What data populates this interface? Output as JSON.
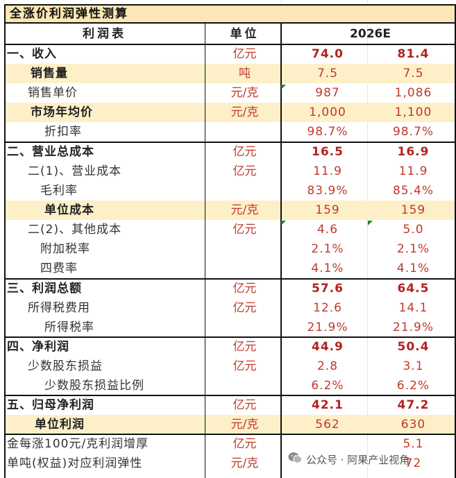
{
  "title": "全涨价利润弹性测算",
  "header": {
    "item": "利润表",
    "unit": "单位",
    "year": "2026E"
  },
  "rows": [
    {
      "label": "一、收入",
      "unit": "亿元",
      "v1": "74.0",
      "v2": "81.4"
    },
    {
      "label": "销售量",
      "unit": "吨",
      "v1": "7.5",
      "v2": "7.5"
    },
    {
      "label": "销售单价",
      "unit": "元/克",
      "v1": "987",
      "v2": "1,086"
    },
    {
      "label": "市场年均价",
      "unit": "元/克",
      "v1": "1,000",
      "v2": "1,100"
    },
    {
      "label": "折扣率",
      "unit": "",
      "v1": "98.7%",
      "v2": "98.7%"
    },
    {
      "label": "二、营业总成本",
      "unit": "亿元",
      "v1": "16.5",
      "v2": "16.9"
    },
    {
      "label": "二(1)、营业成本",
      "unit": "亿元",
      "v1": "11.9",
      "v2": "11.9"
    },
    {
      "label": "毛利率",
      "unit": "",
      "v1": "83.9%",
      "v2": "85.4%"
    },
    {
      "label": "单位成本",
      "unit": "元/克",
      "v1": "159",
      "v2": "159"
    },
    {
      "label": "二(2)、其他成本",
      "unit": "亿元",
      "v1": "4.6",
      "v2": "5.0"
    },
    {
      "label": "附加税率",
      "unit": "",
      "v1": "2.1%",
      "v2": "2.1%"
    },
    {
      "label": "四费率",
      "unit": "",
      "v1": "4.1%",
      "v2": "4.1%"
    },
    {
      "label": "三、利润总额",
      "unit": "亿元",
      "v1": "57.6",
      "v2": "64.5"
    },
    {
      "label": "所得税费用",
      "unit": "亿元",
      "v1": "12.6",
      "v2": "14.1"
    },
    {
      "label": "所得税率",
      "unit": "",
      "v1": "21.9%",
      "v2": "21.9%"
    },
    {
      "label": "四、净利润",
      "unit": "亿元",
      "v1": "44.9",
      "v2": "50.4"
    },
    {
      "label": "少数股东损益",
      "unit": "亿元",
      "v1": "2.8",
      "v2": "3.1"
    },
    {
      "label": "少数股东损益比例",
      "unit": "",
      "v1": "6.2%",
      "v2": "6.2%"
    },
    {
      "label": "五、归母净利润",
      "unit": "亿元",
      "v1": "42.1",
      "v2": "47.2"
    },
    {
      "label": "单位利润",
      "unit": "元/克",
      "v1": "562",
      "v2": "630"
    },
    {
      "label": "金每涨100元/克利润增厚",
      "unit": "亿元",
      "v1": "",
      "v2": "5.1"
    },
    {
      "label": "单吨(权益)对应利润弹性",
      "unit": "元/克",
      "v1": "",
      "v2": "72"
    }
  ],
  "watermark": "公众号 · 阿果产业视角",
  "colors": {
    "highlight": "#fdf0c8",
    "title_bg": "#fbe6b4",
    "red": "#c0392b",
    "marker": "#1a8a2a"
  }
}
